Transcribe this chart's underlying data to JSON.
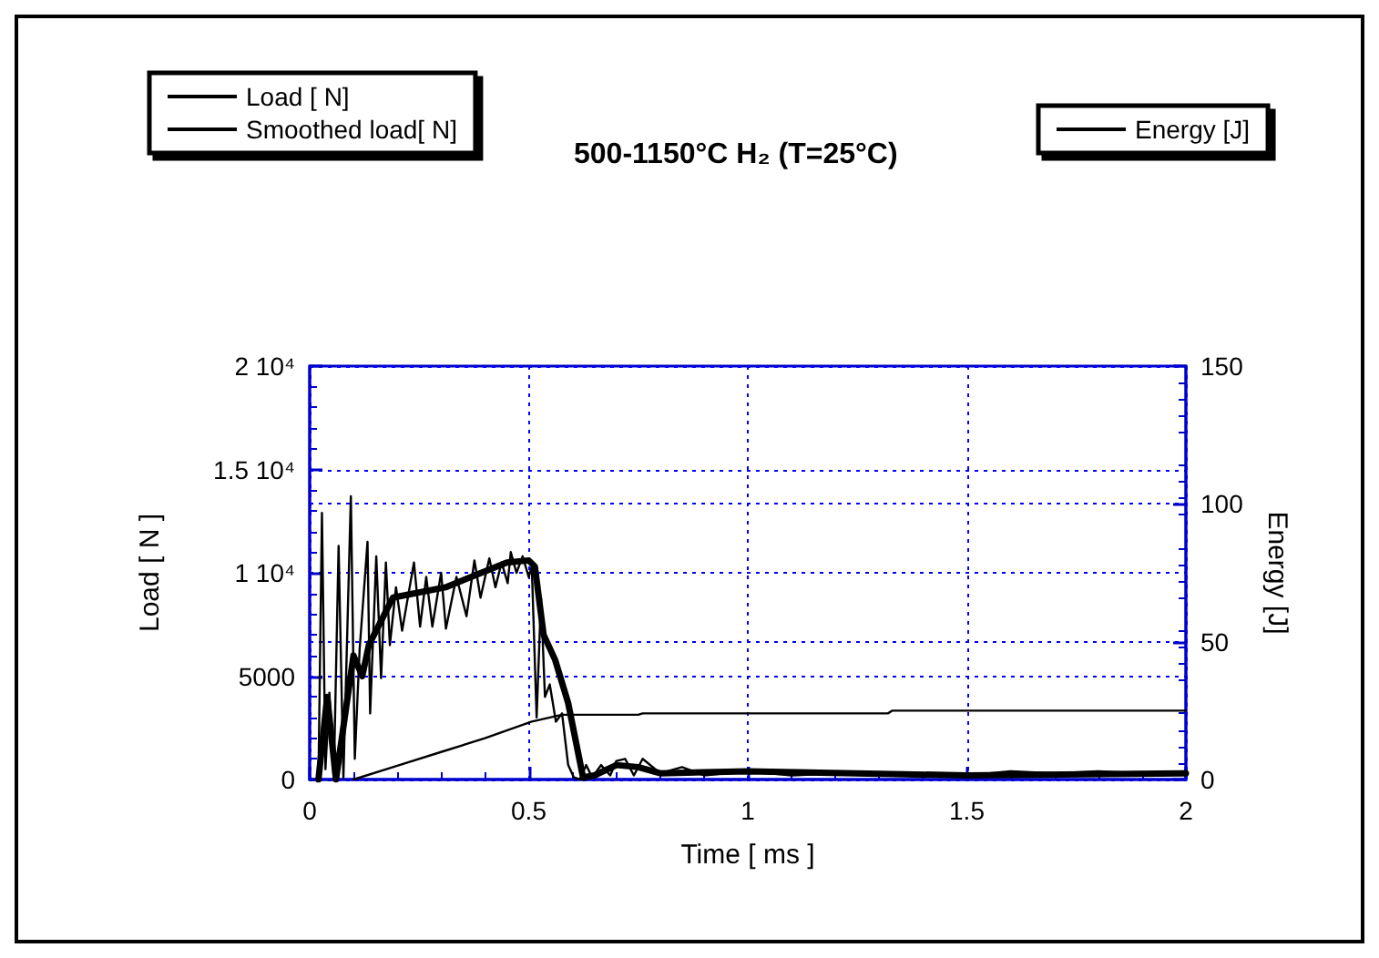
{
  "chart_data": {
    "type": "line",
    "title": "500-1150°C H₂ (T=25°C)",
    "xlabel": "Time [ ms ]",
    "ylabel": "Load [ N ]",
    "y2label": "Energy [J]",
    "xlim": [
      0,
      2
    ],
    "xticks": [
      0,
      0.5,
      1,
      1.5,
      2
    ],
    "ylim": [
      0,
      20000
    ],
    "yticks": [
      0,
      5000,
      {
        "value": 10000,
        "label": "1 10⁴"
      },
      {
        "value": 15000,
        "label": "1.5 10⁴"
      },
      {
        "value": 20000,
        "label": "2 10⁴"
      }
    ],
    "y2lim": [
      0,
      150
    ],
    "y2ticks": [
      0,
      50,
      100,
      150
    ],
    "grid": true,
    "legend": "top",
    "line_style": "solid",
    "series": [
      {
        "name": "Load [ N]",
        "color": "#000000",
        "x": [
          0.02,
          0.028,
          0.036,
          0.045,
          0.055,
          0.066,
          0.077,
          0.094,
          0.103,
          0.114,
          0.132,
          0.138,
          0.152,
          0.163,
          0.174,
          0.183,
          0.197,
          0.211,
          0.238,
          0.252,
          0.266,
          0.28,
          0.3,
          0.311,
          0.335,
          0.358,
          0.376,
          0.39,
          0.41,
          0.424,
          0.438,
          0.452,
          0.459,
          0.472,
          0.486,
          0.5,
          0.507,
          0.518,
          0.528,
          0.537,
          0.548,
          0.562,
          0.576,
          0.59,
          0.603,
          0.617,
          0.631,
          0.645,
          0.665,
          0.686,
          0.7,
          0.72,
          0.74,
          0.76,
          0.8,
          0.85,
          0.9,
          1.0,
          1.1,
          1.2,
          1.3,
          1.4,
          1.5,
          1.6,
          1.7,
          1.8,
          1.9,
          2.0
        ],
        "values": [
          0,
          12900,
          500,
          4200,
          0,
          11300,
          100,
          13700,
          1000,
          6300,
          11500,
          3200,
          10800,
          4900,
          10500,
          6500,
          9300,
          7200,
          10500,
          7400,
          9800,
          7400,
          10000,
          7300,
          9800,
          7900,
          10600,
          8800,
          10700,
          9300,
          10500,
          9500,
          11000,
          10000,
          10800,
          9800,
          10300,
          3000,
          8800,
          4000,
          4600,
          2800,
          3200,
          700,
          100,
          0,
          700,
          100,
          700,
          200,
          900,
          1000,
          200,
          1000,
          300,
          600,
          200,
          400,
          200,
          300,
          200,
          300,
          200,
          400,
          300,
          400,
          300,
          400
        ]
      },
      {
        "name": "Smoothed load[ N]",
        "color": "#000000",
        "x": [
          0.02,
          0.04,
          0.06,
          0.1,
          0.12,
          0.135,
          0.19,
          0.31,
          0.45,
          0.5,
          0.514,
          0.534,
          0.56,
          0.59,
          0.624,
          0.65,
          0.7,
          0.75,
          0.8,
          1.0,
          1.5,
          2.0
        ],
        "values": [
          0,
          4000,
          0,
          6000,
          5000,
          6500,
          8800,
          9300,
          10500,
          10600,
          10300,
          7000,
          5800,
          3700,
          100,
          200,
          700,
          600,
          300,
          400,
          200,
          300
        ]
      },
      {
        "name": "Energy [J]",
        "color": "#000000",
        "axis": "y2",
        "x": [
          0.1,
          0.2,
          0.3,
          0.4,
          0.507,
          0.576,
          0.75,
          0.76,
          1.32,
          1.33,
          2.0
        ],
        "values": [
          0,
          5,
          10,
          15,
          21,
          23.5,
          23.5,
          24,
          24,
          25,
          25
        ]
      }
    ]
  }
}
